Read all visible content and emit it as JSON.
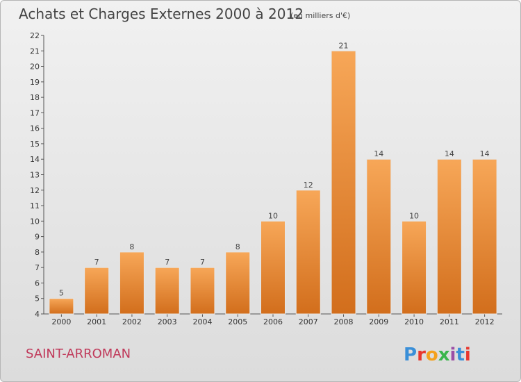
{
  "header": {
    "title": "Achats et Charges Externes 2000 à 2012",
    "unit": "(en milliers d'€)"
  },
  "footer": {
    "commune": "SAINT-ARROMAN",
    "logo_text": "Proxiti"
  },
  "colors": {
    "bar_light": "#f7a758",
    "bar_dark": "#d26e1c",
    "logo_letters": [
      "#3a8fd8",
      "#e8372e",
      "#f4a11d",
      "#3ab54a",
      "#9b4ea6",
      "#3a8fd8",
      "#e8372e"
    ]
  },
  "chart_data": {
    "type": "bar",
    "title": "Achats et Charges Externes 2000 à 2012",
    "subtitle": "(en milliers d'€)",
    "categories": [
      "2000",
      "2001",
      "2002",
      "2003",
      "2004",
      "2005",
      "2006",
      "2007",
      "2008",
      "2009",
      "2010",
      "2011",
      "2012"
    ],
    "values": [
      5,
      7,
      8,
      7,
      7,
      8,
      10,
      12,
      21,
      14,
      10,
      14,
      14
    ],
    "ylim": [
      4,
      22
    ],
    "yticks": [
      4,
      5,
      6,
      7,
      8,
      9,
      10,
      11,
      12,
      13,
      14,
      15,
      16,
      17,
      18,
      19,
      20,
      21,
      22
    ],
    "grid": false,
    "xlabel": "",
    "ylabel": ""
  }
}
